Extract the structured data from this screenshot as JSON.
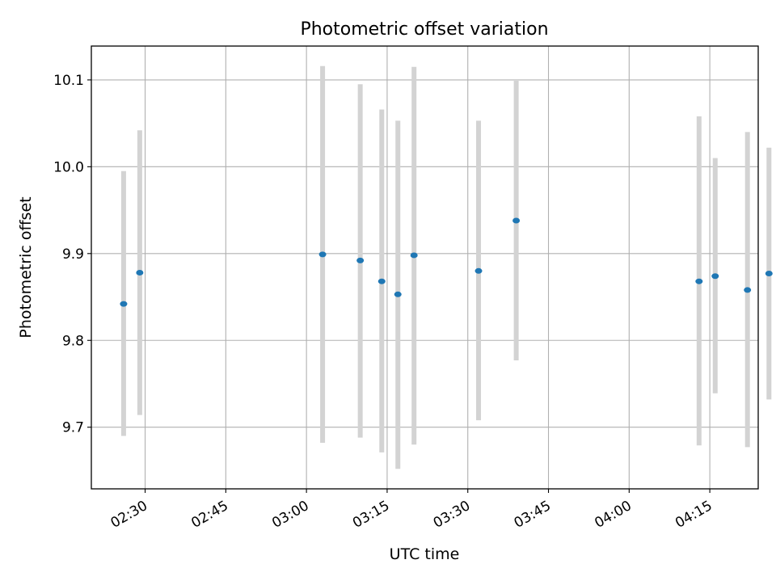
{
  "chart_data": {
    "type": "scatter",
    "title": "Photometric offset variation",
    "xlabel": "UTC time",
    "ylabel": "Photometric offset",
    "xlim": [
      "02:20",
      "04:24"
    ],
    "ylim": [
      9.629,
      10.139
    ],
    "x_ticks": [
      "02:30",
      "02:45",
      "03:00",
      "03:15",
      "03:30",
      "03:45",
      "04:00",
      "04:15"
    ],
    "y_ticks": [
      9.7,
      9.8,
      9.9,
      10.0,
      10.1
    ],
    "y_tick_labels": [
      "9.7",
      "9.8",
      "9.9",
      "10.0",
      "10.1"
    ],
    "grid": true,
    "point_color": "#1f77b4",
    "errorbar_color": "#d3d3d3",
    "points": [
      {
        "time": "02:26",
        "y": 9.842,
        "ylow": 9.69,
        "yhigh": 9.995
      },
      {
        "time": "02:29",
        "y": 9.878,
        "ylow": 9.714,
        "yhigh": 10.042
      },
      {
        "time": "03:03",
        "y": 9.899,
        "ylow": 9.682,
        "yhigh": 10.116
      },
      {
        "time": "03:10",
        "y": 9.892,
        "ylow": 9.688,
        "yhigh": 10.095
      },
      {
        "time": "03:14",
        "y": 9.868,
        "ylow": 9.671,
        "yhigh": 10.066
      },
      {
        "time": "03:17",
        "y": 9.853,
        "ylow": 9.652,
        "yhigh": 10.053
      },
      {
        "time": "03:20",
        "y": 9.898,
        "ylow": 9.68,
        "yhigh": 10.115
      },
      {
        "time": "03:32",
        "y": 9.88,
        "ylow": 9.708,
        "yhigh": 10.053
      },
      {
        "time": "03:39",
        "y": 9.938,
        "ylow": 9.777,
        "yhigh": 10.099
      },
      {
        "time": "04:13",
        "y": 9.868,
        "ylow": 9.679,
        "yhigh": 10.058
      },
      {
        "time": "04:16",
        "y": 9.874,
        "ylow": 9.739,
        "yhigh": 10.01
      },
      {
        "time": "04:22",
        "y": 9.858,
        "ylow": 9.677,
        "yhigh": 10.04
      },
      {
        "time": "04:26",
        "y": 9.877,
        "ylow": 9.732,
        "yhigh": 10.022
      }
    ]
  }
}
